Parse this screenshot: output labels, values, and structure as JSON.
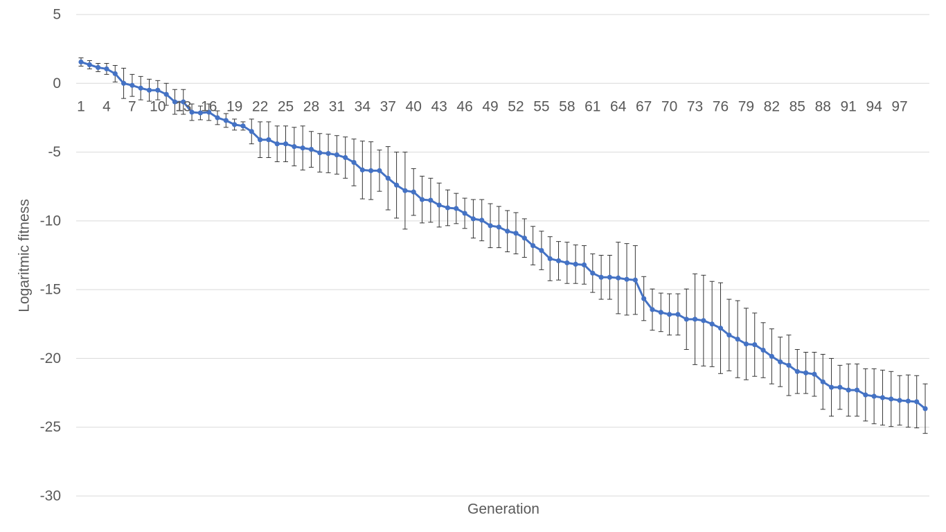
{
  "chart_data": {
    "type": "line",
    "title": "",
    "xlabel": "Generation",
    "ylabel": "Logaritmic fitness",
    "ylim": [
      -30,
      5
    ],
    "yticks": [
      5,
      0,
      -5,
      -10,
      -15,
      -20,
      -25,
      -30
    ],
    "grid": true,
    "legend": "none",
    "x_tick_labels": [
      1,
      4,
      7,
      10,
      13,
      16,
      19,
      22,
      25,
      28,
      31,
      34,
      37,
      40,
      43,
      46,
      49,
      52,
      55,
      58,
      61,
      64,
      67,
      70,
      73,
      76,
      79,
      82,
      85,
      88,
      91,
      94,
      97
    ],
    "color": "#4472c4",
    "x": [
      1,
      2,
      3,
      4,
      5,
      6,
      7,
      8,
      9,
      10,
      11,
      12,
      13,
      14,
      15,
      16,
      17,
      18,
      19,
      20,
      21,
      22,
      23,
      24,
      25,
      26,
      27,
      28,
      29,
      30,
      31,
      32,
      33,
      34,
      35,
      36,
      37,
      38,
      39,
      40,
      41,
      42,
      43,
      44,
      45,
      46,
      47,
      48,
      49,
      50,
      51,
      52,
      53,
      54,
      55,
      56,
      57,
      58,
      59,
      60,
      61,
      62,
      63,
      64,
      65,
      66,
      67,
      68,
      69,
      70,
      71,
      72,
      73,
      74,
      75,
      76,
      77,
      78,
      79,
      80,
      81,
      82,
      83,
      84,
      85,
      86,
      87,
      88,
      89,
      90,
      91,
      92,
      93,
      94,
      95,
      96,
      97,
      98,
      99,
      100
    ],
    "values": [
      1.55,
      1.35,
      1.15,
      1.05,
      0.7,
      0.0,
      -0.15,
      -0.35,
      -0.5,
      -0.5,
      -0.8,
      -1.35,
      -1.35,
      -2.1,
      -2.15,
      -2.1,
      -2.5,
      -2.7,
      -3.0,
      -3.1,
      -3.5,
      -4.1,
      -4.1,
      -4.4,
      -4.4,
      -4.6,
      -4.7,
      -4.8,
      -5.05,
      -5.1,
      -5.2,
      -5.4,
      -5.75,
      -6.3,
      -6.35,
      -6.35,
      -6.9,
      -7.4,
      -7.8,
      -7.9,
      -8.45,
      -8.5,
      -8.85,
      -9.05,
      -9.1,
      -9.45,
      -9.85,
      -9.95,
      -10.35,
      -10.45,
      -10.75,
      -10.9,
      -11.25,
      -11.8,
      -12.15,
      -12.75,
      -12.9,
      -13.05,
      -13.15,
      -13.2,
      -13.8,
      -14.1,
      -14.1,
      -14.15,
      -14.25,
      -14.3,
      -15.65,
      -16.45,
      -16.65,
      -16.8,
      -16.8,
      -17.15,
      -17.15,
      -17.25,
      -17.5,
      -17.8,
      -18.3,
      -18.6,
      -18.95,
      -19.0,
      -19.4,
      -19.85,
      -20.25,
      -20.5,
      -20.95,
      -21.05,
      -21.15,
      -21.7,
      -22.1,
      -22.1,
      -22.3,
      -22.3,
      -22.65,
      -22.75,
      -22.85,
      -22.95,
      -23.05,
      -23.1,
      -23.15,
      -23.65
    ],
    "errors": [
      0.3,
      0.3,
      0.3,
      0.4,
      0.6,
      1.1,
      0.8,
      0.85,
      0.8,
      0.7,
      0.8,
      0.9,
      0.9,
      0.6,
      0.5,
      0.6,
      0.5,
      0.5,
      0.4,
      0.3,
      0.9,
      1.3,
      1.3,
      1.3,
      1.3,
      1.4,
      1.6,
      1.3,
      1.4,
      1.4,
      1.4,
      1.5,
      1.7,
      2.1,
      2.1,
      1.5,
      2.3,
      2.4,
      2.8,
      1.7,
      1.7,
      1.6,
      1.6,
      1.3,
      1.1,
      1.1,
      1.4,
      1.5,
      1.6,
      1.5,
      1.5,
      1.5,
      1.4,
      1.4,
      1.4,
      1.6,
      1.4,
      1.5,
      1.4,
      1.4,
      1.4,
      1.6,
      1.6,
      2.6,
      2.6,
      2.5,
      1.6,
      1.5,
      1.4,
      1.5,
      1.5,
      2.2,
      3.3,
      3.3,
      3.1,
      3.3,
      2.6,
      2.8,
      2.6,
      2.3,
      2.0,
      2.0,
      1.8,
      2.2,
      1.6,
      1.5,
      1.6,
      2.0,
      2.1,
      1.6,
      1.9,
      1.9,
      1.9,
      2.0,
      2.0,
      2.0,
      1.8,
      1.9,
      1.9,
      1.8
    ]
  }
}
